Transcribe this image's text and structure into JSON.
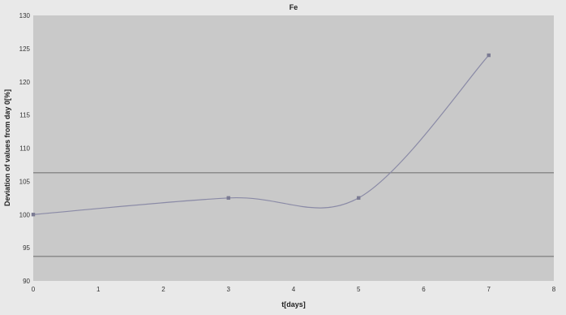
{
  "chart_data": {
    "type": "line",
    "title": "Fe",
    "xlabel": "t[days]",
    "ylabel": "Deviation of values from day 0[%]",
    "xlim": [
      0,
      8
    ],
    "ylim": [
      90,
      130
    ],
    "x_ticks": [
      "0",
      "1",
      "2",
      "3",
      "4",
      "5",
      "6",
      "7",
      "8"
    ],
    "y_ticks": [
      "90",
      "95",
      "100",
      "105",
      "110",
      "115",
      "120",
      "125",
      "130"
    ],
    "series": [
      {
        "points": [
          {
            "x": 0,
            "y": 100
          },
          {
            "x": 3,
            "y": 102.5
          },
          {
            "x": 5,
            "y": 102.5
          },
          {
            "x": 7,
            "y": 124
          }
        ],
        "color": "#8a8aa6",
        "smooth": true
      }
    ],
    "reference_lines": [
      106.3,
      93.7
    ],
    "grid": false,
    "plot_background": "#c9c9c9",
    "page_background": "#e9e9e9",
    "line_color": "#8a8aa6",
    "reference_line_color": "#8b8b8b"
  }
}
